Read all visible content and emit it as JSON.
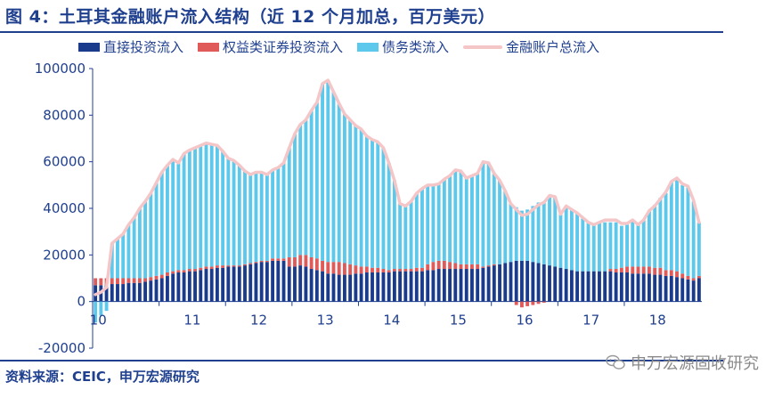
{
  "title": "图 4：土耳其金融账户流入结构（近 12 个月加总，百万美元）",
  "source": "资料来源：CEIC，申万宏源研究",
  "watermark": "申万宏源固收研究",
  "colors": {
    "direct": "#1a3a8c",
    "equity": "#e05a5a",
    "debt": "#5bc8ec",
    "total": "#f5c6c8",
    "text": "#1f3f8f"
  },
  "chart_data": {
    "type": "bar",
    "stacked": true,
    "title": "土耳其金融账户流入结构（近 12 个月加总，百万美元）",
    "xlabel": "",
    "ylabel": "",
    "ylim": [
      -20000,
      100000
    ],
    "yticks": [
      -20000,
      0,
      20000,
      40000,
      60000,
      80000,
      100000
    ],
    "ytick_labels": [
      "-20000",
      "0",
      "20000",
      "40000",
      "60000",
      "80000",
      "100000"
    ],
    "x_tick_labels": [
      "10",
      "11",
      "12",
      "13",
      "14",
      "15",
      "16",
      "17",
      "18"
    ],
    "x_start_year": 2010,
    "legend": [
      "直接投资流入",
      "权益类证券投资流入",
      "债务类流入",
      "金融账户总流入"
    ],
    "series": [
      {
        "name": "直接投资流入",
        "type": "bar",
        "values": [
          7000,
          7000,
          7000,
          7500,
          7500,
          7500,
          8000,
          8000,
          8000,
          8500,
          9000,
          9500,
          10000,
          11000,
          12000,
          12500,
          12500,
          13000,
          13000,
          13500,
          14000,
          14000,
          14500,
          14500,
          15000,
          15000,
          15000,
          15500,
          16000,
          16500,
          17000,
          17000,
          17500,
          17500,
          17500,
          15000,
          15000,
          15500,
          15000,
          14000,
          13500,
          13000,
          12000,
          12000,
          11500,
          11500,
          11500,
          12000,
          12000,
          12500,
          12500,
          12500,
          12500,
          12500,
          13000,
          13000,
          13000,
          13000,
          13000,
          13000,
          13500,
          13500,
          14000,
          14000,
          14000,
          14000,
          14000,
          14000,
          14000,
          14000,
          14500,
          15000,
          15500,
          16000,
          16500,
          17000,
          17500,
          17500,
          17500,
          17000,
          16500,
          16000,
          15500,
          15000,
          14500,
          14000,
          13500,
          13000,
          13000,
          13000,
          13000,
          13000,
          13000,
          13000,
          12500,
          12500,
          12500,
          12000,
          12000,
          12000,
          12000,
          11500,
          11500,
          11000,
          11000,
          10500,
          10000,
          9500,
          9000,
          10000
        ]
      },
      {
        "name": "权益类证券投资流入",
        "type": "bar",
        "values": [
          3000,
          3000,
          3000,
          2500,
          2500,
          2500,
          2000,
          2000,
          2000,
          1500,
          1500,
          1500,
          1500,
          1500,
          1000,
          1000,
          1000,
          1000,
          1000,
          1000,
          1000,
          1000,
          1000,
          1000,
          500,
          500,
          500,
          500,
          500,
          500,
          500,
          500,
          1000,
          1000,
          1000,
          4000,
          4000,
          4500,
          5000,
          5000,
          5000,
          4500,
          5000,
          5000,
          5500,
          5000,
          4500,
          3500,
          3000,
          2500,
          2000,
          2000,
          1500,
          1000,
          1000,
          1000,
          1000,
          1000,
          1500,
          1500,
          2500,
          3500,
          3500,
          3500,
          3000,
          2500,
          2000,
          2000,
          2000,
          2000,
          500,
          500,
          500,
          0,
          0,
          0,
          -1500,
          -2500,
          -2000,
          -1500,
          -1000,
          -500,
          0,
          0,
          0,
          0,
          0,
          0,
          0,
          0,
          0,
          0,
          0,
          1000,
          1500,
          2000,
          2500,
          3000,
          3000,
          3000,
          3000,
          3000,
          3000,
          2500,
          2500,
          2500,
          2000,
          1500,
          1000,
          1000
        ]
      },
      {
        "name": "债务类流入",
        "type": "bar",
        "values": [
          -9000,
          -6000,
          -4000,
          15000,
          17000,
          19000,
          23000,
          26000,
          30000,
          33000,
          36000,
          40000,
          44000,
          46000,
          48000,
          46000,
          50000,
          51000,
          52000,
          52500,
          53000,
          52500,
          51500,
          49000,
          46000,
          45000,
          43000,
          40000,
          38000,
          38500,
          38000,
          37000,
          38000,
          39000,
          41000,
          47000,
          53000,
          56000,
          58000,
          63000,
          67000,
          76000,
          78000,
          73000,
          68000,
          64000,
          62000,
          60000,
          59000,
          56000,
          55000,
          54000,
          52000,
          46000,
          38000,
          28000,
          27000,
          29000,
          32000,
          34000,
          34000,
          33000,
          33000,
          35000,
          37000,
          40000,
          40000,
          37000,
          38000,
          39000,
          45000,
          44000,
          39000,
          36000,
          31000,
          25000,
          23000,
          21500,
          22000,
          24000,
          26000,
          27000,
          30000,
          30000,
          23000,
          27000,
          26000,
          25000,
          23000,
          21000,
          20000,
          21000,
          21000,
          20000,
          20000,
          18000,
          18000,
          20000,
          18000,
          20000,
          24000,
          27000,
          30000,
          33000,
          38000,
          40000,
          38000,
          38000,
          33000,
          23000
        ]
      },
      {
        "name": "金融账户总流入",
        "type": "line",
        "values": [
          3000,
          4000,
          6000,
          25000,
          27000,
          29000,
          33000,
          36000,
          40000,
          43000,
          46500,
          51000,
          55500,
          58500,
          61000,
          59500,
          63500,
          65000,
          66000,
          67000,
          68000,
          67500,
          67000,
          64500,
          61500,
          60500,
          58500,
          56000,
          54500,
          55500,
          55500,
          54500,
          56500,
          57500,
          59500,
          66000,
          72000,
          76000,
          78000,
          82000,
          85500,
          93500,
          95000,
          90000,
          85000,
          80500,
          78000,
          75500,
          74000,
          71000,
          69500,
          68500,
          66000,
          59500,
          52000,
          42000,
          41000,
          43000,
          46500,
          48500,
          50000,
          50000,
          50500,
          52500,
          54000,
          56500,
          56000,
          53000,
          54000,
          55000,
          60000,
          59500,
          55000,
          52000,
          47500,
          42000,
          39500,
          37000,
          37500,
          39500,
          41500,
          42500,
          45500,
          45000,
          37500,
          41000,
          39500,
          38000,
          36000,
          34000,
          33000,
          34000,
          35000,
          35000,
          35000,
          33500,
          33500,
          35000,
          33000,
          35000,
          39000,
          41000,
          44000,
          47000,
          51500,
          53000,
          50500,
          49500,
          43500,
          34000
        ]
      }
    ]
  }
}
